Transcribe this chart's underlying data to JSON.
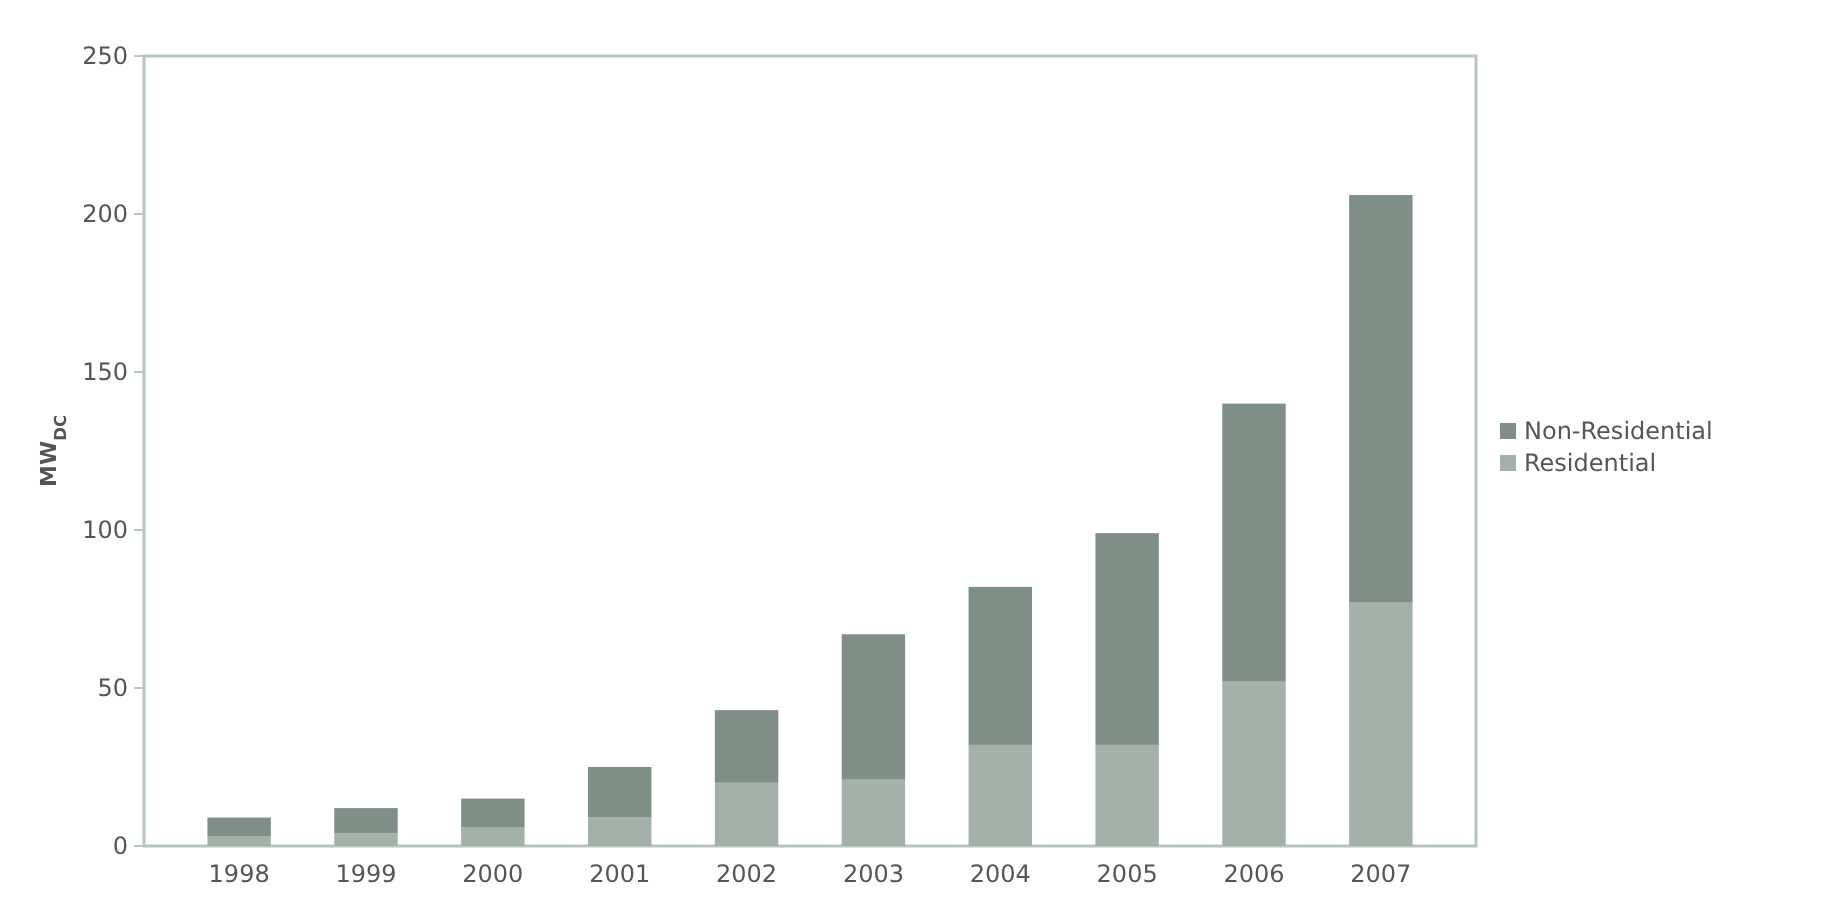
{
  "chart_data": {
    "type": "bar",
    "stacked": true,
    "ylabel": "MW$_{DC}$",
    "categories": [
      "1998",
      "1999",
      "2000",
      "2001",
      "2002",
      "2003",
      "2004",
      "2005",
      "2006",
      "2007"
    ],
    "series": [
      {
        "name": "Residential",
        "color": "#a4b1ab",
        "values": [
          3,
          4,
          6,
          9,
          20,
          21,
          32,
          32,
          52,
          77
        ]
      },
      {
        "name": "Non-Residential",
        "color": "#7f8f88",
        "values": [
          6,
          8,
          9,
          16,
          23,
          46,
          50,
          67,
          88,
          129
        ]
      }
    ],
    "ylim": [
      0,
      250
    ],
    "yticks": [
      0,
      50,
      100,
      150,
      200,
      250
    ],
    "legend": "right"
  }
}
